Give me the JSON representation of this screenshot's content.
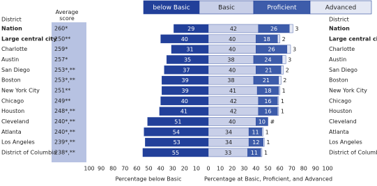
{
  "chart_data": {
    "type": "diverging-stacked-bar",
    "row_label_header": "District",
    "score_header": "Average score",
    "categories": [
      "Nation",
      "Large central city",
      "Charlotte",
      "Austin",
      "San Diego",
      "Boston",
      "New York City",
      "Chicago",
      "Houston",
      "Cleveland",
      "Atlanta",
      "Los Angeles",
      "District of Columbia"
    ],
    "highlight_rows": [
      0,
      1
    ],
    "scores": [
      "260*",
      "250**",
      "259*",
      "257*",
      "253*,**",
      "253*,**",
      "251**",
      "249**",
      "248*,**",
      "240*,**",
      "240*,**",
      "239*,**",
      "238*,**"
    ],
    "series": [
      {
        "name": "below Basic",
        "color": "#22409a",
        "side": "left",
        "values": [
          29,
          40,
          31,
          35,
          37,
          39,
          39,
          40,
          41,
          51,
          54,
          53,
          55
        ]
      },
      {
        "name": "Basic",
        "color": "#c8cfe8",
        "side": "right",
        "values": [
          42,
          40,
          40,
          38,
          40,
          38,
          41,
          42,
          42,
          40,
          34,
          34,
          33
        ]
      },
      {
        "name": "Proficient",
        "color": "#3d5caa",
        "side": "right",
        "values": [
          26,
          18,
          26,
          24,
          21,
          21,
          18,
          16,
          16,
          10,
          11,
          12,
          11
        ]
      },
      {
        "name": "Advanced",
        "color": "#e4e8f4",
        "side": "right",
        "values": [
          3,
          2,
          3,
          3,
          2,
          2,
          1,
          1,
          1,
          0,
          1,
          1,
          1
        ],
        "value_labels": [
          "3",
          "2",
          "3",
          "3",
          "2",
          "2",
          "1",
          "1",
          "1",
          "#",
          "1",
          "1",
          "1"
        ]
      }
    ],
    "xlim": [
      -100,
      100
    ],
    "xticks": [
      {
        "value": -100,
        "label": "100"
      },
      {
        "value": -90,
        "label": "90"
      },
      {
        "value": -80,
        "label": "80"
      },
      {
        "value": -70,
        "label": "70"
      },
      {
        "value": -60,
        "label": "60"
      },
      {
        "value": -50,
        "label": "50"
      },
      {
        "value": -40,
        "label": "40"
      },
      {
        "value": -30,
        "label": "30"
      },
      {
        "value": -20,
        "label": "20"
      },
      {
        "value": -10,
        "label": "10"
      },
      0,
      10,
      20,
      30,
      40,
      50,
      60,
      70,
      80,
      90,
      100
    ],
    "xlabel_left": "Percentage below Basic",
    "xlabel_right": "Percentage at Basic, Proficient, and Advanced"
  }
}
